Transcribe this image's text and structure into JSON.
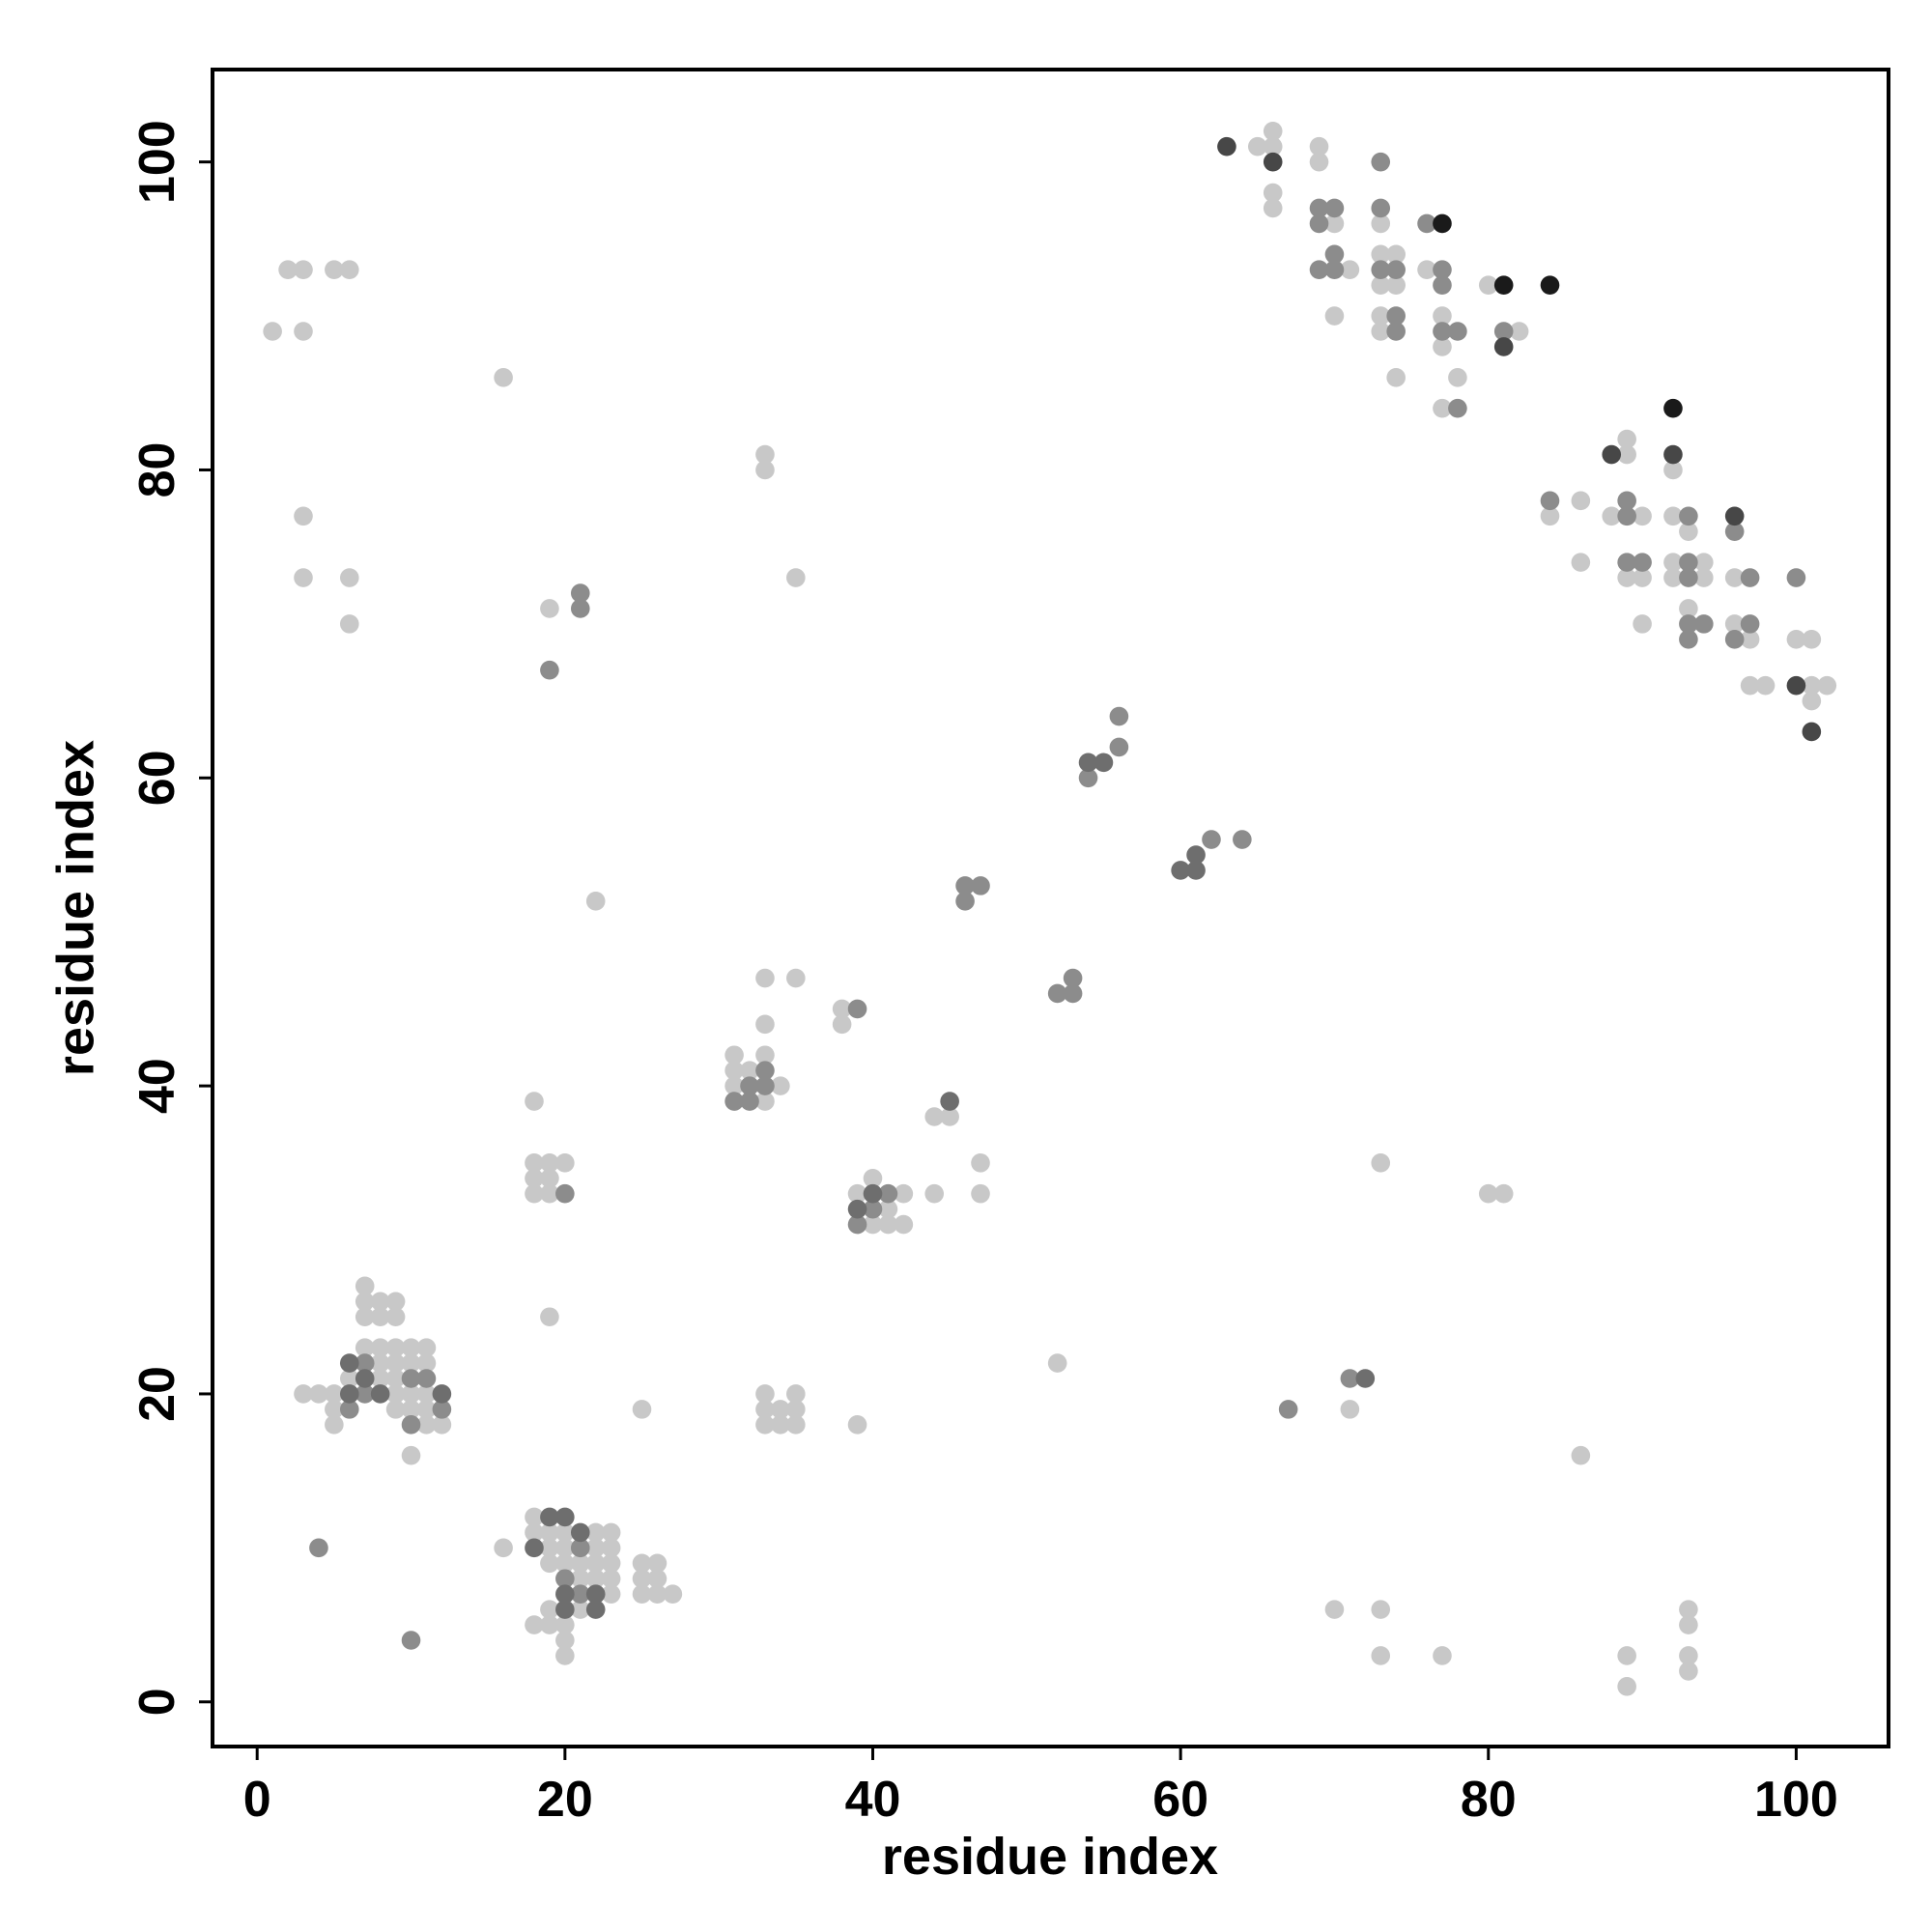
{
  "chart_data": {
    "type": "scatter",
    "x_label": "residue index",
    "y_label": "residue index",
    "xlim": [
      -2.9,
      106
    ],
    "ylim": [
      -2.9,
      106
    ],
    "xticks": [
      0,
      20,
      40,
      60,
      80,
      100
    ],
    "yticks": [
      0,
      20,
      40,
      60,
      80,
      100
    ],
    "grid": false,
    "series": [
      {
        "color": "#c8c8c8",
        "x": [
          2,
          3,
          5,
          6,
          1,
          3,
          16,
          3,
          3,
          6,
          6,
          33,
          33,
          35,
          19,
          22,
          65,
          66,
          66,
          66,
          66,
          69,
          69,
          70,
          73,
          71,
          73,
          74,
          73,
          74,
          76,
          80,
          70,
          73,
          73,
          77,
          77,
          82,
          74,
          78,
          77,
          89,
          89,
          92,
          84,
          86,
          88,
          90,
          92,
          93,
          86,
          92,
          94,
          89,
          90,
          92,
          94,
          96,
          93,
          90,
          96,
          97,
          100,
          101,
          97,
          98,
          101,
          102,
          101,
          38,
          38,
          33,
          35,
          33,
          31,
          33,
          31,
          32,
          31,
          34,
          33,
          44,
          45,
          47,
          47,
          44,
          39,
          40,
          42,
          41,
          40,
          41,
          42,
          18,
          18,
          19,
          20,
          18,
          19,
          18,
          19,
          19,
          73,
          80,
          81,
          7,
          7,
          8,
          9,
          7,
          8,
          9,
          7,
          8,
          9,
          10,
          11,
          8,
          9,
          10,
          11,
          6,
          8,
          9,
          3,
          4,
          5,
          9,
          10,
          11,
          5,
          9,
          10,
          11,
          5,
          11,
          12,
          10,
          16,
          25,
          33,
          35,
          33,
          34,
          35,
          33,
          34,
          35,
          39,
          52,
          71,
          86,
          18,
          18,
          19,
          20,
          22,
          23,
          19,
          20,
          22,
          23,
          19,
          20,
          21,
          22,
          23,
          25,
          26,
          21,
          22,
          23,
          25,
          26,
          23,
          25,
          26,
          27,
          19,
          21,
          18,
          19,
          20,
          20,
          20,
          70,
          73,
          73,
          77,
          89,
          89,
          93,
          93,
          93,
          93
        ],
        "y": [
          93,
          93,
          93,
          93,
          89,
          89,
          86,
          77,
          73,
          73,
          70,
          81,
          80,
          73,
          71,
          52,
          101,
          102,
          101,
          98,
          97,
          101,
          100,
          96,
          96,
          93,
          94,
          94,
          92,
          92,
          93,
          92,
          90,
          90,
          89,
          90,
          88,
          89,
          86,
          86,
          84,
          82,
          81,
          80,
          77,
          78,
          77,
          77,
          77,
          76,
          74,
          74,
          74,
          73,
          73,
          73,
          73,
          73,
          71,
          70,
          70,
          69,
          69,
          69,
          66,
          66,
          66,
          66,
          65,
          45,
          44,
          47,
          47,
          44,
          42,
          42,
          41,
          41,
          40,
          40,
          39,
          38,
          38,
          35,
          33,
          33,
          33,
          34,
          33,
          32,
          31,
          31,
          31,
          39,
          35,
          35,
          35,
          34,
          34,
          33,
          33,
          25,
          35,
          33,
          33,
          27,
          26,
          26,
          26,
          25,
          25,
          25,
          23,
          23,
          23,
          23,
          23,
          22,
          22,
          22,
          22,
          21,
          21,
          21,
          20,
          20,
          20,
          20,
          20,
          20,
          19,
          19,
          19,
          19,
          18,
          18,
          18,
          16,
          10,
          19,
          20,
          20,
          19,
          19,
          19,
          18,
          18,
          18,
          18,
          22,
          19,
          16,
          12,
          11,
          11,
          11,
          11,
          11,
          10,
          10,
          10,
          10,
          9,
          9,
          9,
          9,
          9,
          9,
          9,
          8,
          8,
          8,
          8,
          8,
          7,
          7,
          7,
          7,
          6,
          6,
          5,
          5,
          5,
          4,
          3,
          6,
          6,
          3,
          3,
          3,
          1,
          6,
          5,
          3,
          2
        ]
      },
      {
        "color": "#8c8c8c",
        "x": [
          21,
          21,
          19,
          73,
          69,
          70,
          69,
          73,
          76,
          70,
          69,
          70,
          73,
          74,
          77,
          77,
          74,
          74,
          77,
          78,
          81,
          78,
          84,
          89,
          89,
          93,
          96,
          89,
          90,
          93,
          93,
          97,
          100,
          93,
          94,
          97,
          93,
          96,
          56,
          56,
          54,
          62,
          64,
          46,
          47,
          46,
          52,
          53,
          53,
          39,
          33,
          32,
          33,
          31,
          32,
          41,
          40,
          39,
          20,
          7,
          10,
          11,
          7,
          6,
          12,
          10,
          4,
          10,
          71,
          67,
          21,
          20,
          21
        ],
        "y": [
          72,
          71,
          67,
          100,
          97,
          97,
          96,
          97,
          96,
          94,
          93,
          93,
          93,
          93,
          93,
          92,
          90,
          89,
          89,
          89,
          89,
          84,
          78,
          78,
          77,
          77,
          76,
          74,
          74,
          74,
          73,
          73,
          73,
          70,
          70,
          70,
          69,
          69,
          64,
          62,
          60,
          56,
          56,
          53,
          53,
          52,
          46,
          47,
          46,
          45,
          41,
          40,
          40,
          39,
          39,
          33,
          32,
          31,
          33,
          22,
          21,
          21,
          20,
          19,
          19,
          18,
          10,
          4,
          21,
          19,
          10,
          8,
          7
        ]
      },
      {
        "color": "#6e6e6e",
        "x": [
          54,
          55,
          60,
          61,
          61,
          45,
          40,
          39,
          6,
          7,
          6,
          8,
          12,
          72,
          19,
          20,
          21,
          18,
          20,
          22,
          20,
          22
        ],
        "y": [
          61,
          61,
          54,
          55,
          54,
          39,
          33,
          32,
          22,
          21,
          20,
          20,
          20,
          21,
          12,
          12,
          11,
          10,
          7,
          7,
          6,
          6
        ]
      },
      {
        "color": "#474747",
        "x": [
          63,
          66,
          81,
          88,
          92,
          96,
          100,
          101
        ],
        "y": [
          101,
          100,
          88,
          81,
          81,
          77,
          66,
          63
        ]
      },
      {
        "color": "#1a1a1a",
        "x": [
          77,
          81,
          84,
          92
        ],
        "y": [
          96,
          92,
          92,
          84
        ]
      }
    ]
  }
}
